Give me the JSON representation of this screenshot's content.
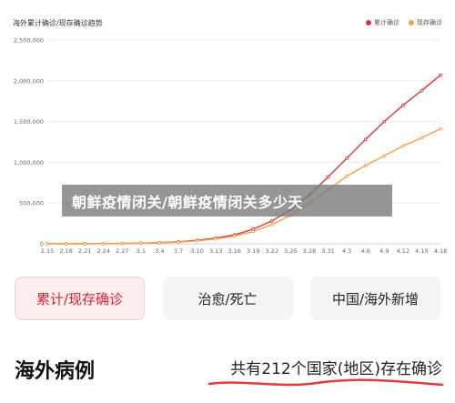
{
  "chart": {
    "title": "海外累计确诊/现存确诊趋势",
    "legend": [
      {
        "label": "累计确诊",
        "color": "#d9393c"
      },
      {
        "label": "现存确诊",
        "color": "#f3a14a"
      }
    ]
  },
  "chart_data": {
    "type": "line",
    "title": "海外累计确诊/现存确诊趋势",
    "xlabel": "",
    "ylabel": "",
    "x": [
      "2.15",
      "2.18",
      "2.21",
      "2.24",
      "2.27",
      "3.1",
      "3.4",
      "3.7",
      "3.10",
      "3.13",
      "3.16",
      "3.19",
      "3.22",
      "3.25",
      "3.28",
      "3.31",
      "4.3",
      "4.6",
      "4.9",
      "4.12",
      "4.15",
      "4.18"
    ],
    "y_ticks": [
      "0",
      "500,000",
      "1,000,000",
      "1,500,000",
      "2,000,000",
      "2,500,000"
    ],
    "ylim": [
      0,
      2500000
    ],
    "grid": true,
    "legend_position": "top-right",
    "series": [
      {
        "name": "累计确诊",
        "color": "#d9393c",
        "values": [
          600,
          800,
          1200,
          2500,
          4500,
          8000,
          14000,
          24000,
          42000,
          70000,
          110000,
          180000,
          280000,
          420000,
          600000,
          820000,
          1050000,
          1280000,
          1500000,
          1700000,
          1880000,
          2070000
        ]
      },
      {
        "name": "现存确诊",
        "color": "#f3a14a",
        "values": [
          500,
          700,
          1000,
          2000,
          4000,
          7000,
          12000,
          20000,
          36000,
          60000,
          95000,
          150000,
          235000,
          350000,
          500000,
          660000,
          830000,
          960000,
          1080000,
          1200000,
          1300000,
          1410000
        ]
      }
    ]
  },
  "overlay": {
    "text": "朝鲜疫情闭关/朝鲜疫情闭关多少天"
  },
  "tabs": [
    {
      "label": "累计/现存确诊",
      "active": true
    },
    {
      "label": "治愈/死亡",
      "active": false
    },
    {
      "label": "中国/海外新增",
      "active": false
    }
  ],
  "section": {
    "title": "海外病例",
    "summary": "共有212个国家(地区)存在确诊"
  }
}
